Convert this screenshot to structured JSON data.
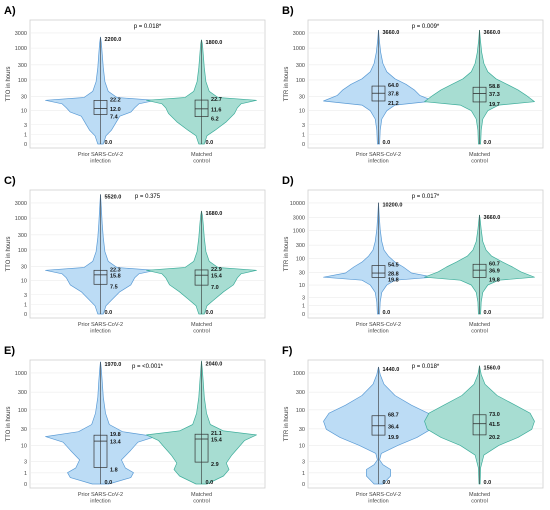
{
  "chart_data": [
    {
      "type": "violin",
      "panel": "A)",
      "ylabel": "TTO in hours",
      "yscale": "log1p",
      "yticks": [
        0,
        1,
        3,
        10,
        30,
        100,
        300,
        1000,
        3000
      ],
      "p_label": "p = 0.018*",
      "groups": [
        {
          "name": "Prior SARS-CoV-2\ninfection",
          "color": "#bcdcf5",
          "edge": "#5b9bd5",
          "min": 0.0,
          "max": 2200.0,
          "q1": 7.4,
          "median": 12.0,
          "q3": 22.2,
          "min_label": "0.0",
          "max_label": "2200.0",
          "q1_label": "7.4",
          "median_label": "12.0",
          "q3_label": "22.2",
          "profile": [
            [
              0,
              0.05
            ],
            [
              0.6,
              0.1
            ],
            [
              1,
              0.2
            ],
            [
              2,
              0.35
            ],
            [
              2.3,
              0.55
            ],
            [
              2.6,
              0.62
            ],
            [
              2.9,
              0.7
            ],
            [
              3.15,
              1.0
            ],
            [
              3.35,
              0.3
            ],
            [
              3.8,
              0.14
            ],
            [
              4.5,
              0.08
            ],
            [
              5.5,
              0.05
            ],
            [
              6.5,
              0.03
            ],
            [
              7.3,
              0.015
            ],
            [
              7.7,
              0.0
            ]
          ]
        },
        {
          "name": "Matched\ncontrol",
          "color": "#a7ddd2",
          "edge": "#3fae9c",
          "min": 0.0,
          "max": 1800.0,
          "q1": 6.2,
          "median": 11.6,
          "q3": 22.7,
          "min_label": "0.0",
          "max_label": "1800.0",
          "q1_label": "6.2",
          "median_label": "11.6",
          "q3_label": "22.7",
          "profile": [
            [
              0,
              0.05
            ],
            [
              0.6,
              0.1
            ],
            [
              1,
              0.25
            ],
            [
              1.6,
              0.45
            ],
            [
              2.2,
              0.6
            ],
            [
              2.6,
              0.65
            ],
            [
              2.9,
              0.72
            ],
            [
              3.15,
              1.0
            ],
            [
              3.35,
              0.3
            ],
            [
              3.8,
              0.14
            ],
            [
              4.5,
              0.08
            ],
            [
              5.5,
              0.05
            ],
            [
              6.5,
              0.03
            ],
            [
              7.2,
              0.015
            ],
            [
              7.5,
              0.0
            ]
          ]
        }
      ]
    },
    {
      "type": "violin",
      "panel": "B)",
      "ylabel": "TTR in hours",
      "yscale": "log1p",
      "yticks": [
        0,
        1,
        3,
        10,
        30,
        100,
        300,
        1000,
        3000
      ],
      "p_label": "p = 0.009*",
      "groups": [
        {
          "name": "Prior SARS-CoV-2\ninfection",
          "color": "#bcdcf5",
          "edge": "#5b9bd5",
          "min": 0.0,
          "max": 3660.0,
          "q1": 21.2,
          "median": 37.8,
          "q3": 64.0,
          "min_label": "0.0",
          "max_label": "3660.0",
          "q1_label": "21.2",
          "median_label": "37.8",
          "q3_label": "64.0",
          "profile": [
            [
              0,
              0.02
            ],
            [
              1,
              0.03
            ],
            [
              1.8,
              0.06
            ],
            [
              2.4,
              0.15
            ],
            [
              2.8,
              0.3
            ],
            [
              3.1,
              1.0
            ],
            [
              3.5,
              0.75
            ],
            [
              3.9,
              0.65
            ],
            [
              4.3,
              0.5
            ],
            [
              4.7,
              0.3
            ],
            [
              5.2,
              0.15
            ],
            [
              5.8,
              0.08
            ],
            [
              6.6,
              0.04
            ],
            [
              7.5,
              0.015
            ],
            [
              8.2,
              0.0
            ]
          ]
        },
        {
          "name": "Matched\ncontrol",
          "color": "#a7ddd2",
          "edge": "#3fae9c",
          "min": 0.0,
          "max": 3660.0,
          "q1": 19.7,
          "median": 37.3,
          "q3": 58.8,
          "min_label": "0.0",
          "max_label": "3660.0",
          "q1_label": "19.7",
          "median_label": "37.3",
          "q3_label": "58.8",
          "profile": [
            [
              0,
              0.02
            ],
            [
              1,
              0.03
            ],
            [
              1.8,
              0.06
            ],
            [
              2.4,
              0.15
            ],
            [
              2.8,
              0.35
            ],
            [
              3.05,
              1.0
            ],
            [
              3.5,
              0.85
            ],
            [
              3.9,
              0.7
            ],
            [
              4.3,
              0.5
            ],
            [
              4.7,
              0.3
            ],
            [
              5.2,
              0.15
            ],
            [
              5.8,
              0.08
            ],
            [
              6.6,
              0.04
            ],
            [
              7.5,
              0.015
            ],
            [
              8.2,
              0.0
            ]
          ]
        }
      ]
    },
    {
      "type": "violin",
      "panel": "C)",
      "ylabel": "TTO in hours",
      "yscale": "log1p",
      "yticks": [
        0,
        1,
        3,
        10,
        30,
        100,
        300,
        1000,
        3000
      ],
      "p_label": "p = 0.375",
      "groups": [
        {
          "name": "Prior SARS-CoV-2\ninfection",
          "color": "#bcdcf5",
          "edge": "#5b9bd5",
          "min": 0.0,
          "max": 5520.0,
          "q1": 7.5,
          "median": 15.8,
          "q3": 22.3,
          "min_label": "0.0",
          "max_label": "5520.0",
          "q1_label": "7.5",
          "median_label": "15.8",
          "q3_label": "22.3",
          "profile": [
            [
              0,
              0.05
            ],
            [
              0.6,
              0.1
            ],
            [
              1,
              0.2
            ],
            [
              1.6,
              0.35
            ],
            [
              2.1,
              0.55
            ],
            [
              2.6,
              0.62
            ],
            [
              2.9,
              0.7
            ],
            [
              3.15,
              1.0
            ],
            [
              3.35,
              0.3
            ],
            [
              3.8,
              0.14
            ],
            [
              4.5,
              0.08
            ],
            [
              5.5,
              0.05
            ],
            [
              6.5,
              0.03
            ],
            [
              7.8,
              0.012
            ],
            [
              8.6,
              0.0
            ]
          ]
        },
        {
          "name": "Matched\ncontrol",
          "color": "#a7ddd2",
          "edge": "#3fae9c",
          "min": 0.0,
          "max": 1680.0,
          "q1": 7.0,
          "median": 15.4,
          "q3": 22.9,
          "min_label": "0.0",
          "max_label": "1680.0",
          "q1_label": "7.0",
          "median_label": "15.4",
          "q3_label": "22.9",
          "profile": [
            [
              0,
              0.05
            ],
            [
              0.6,
              0.1
            ],
            [
              1,
              0.22
            ],
            [
              1.6,
              0.4
            ],
            [
              2.1,
              0.58
            ],
            [
              2.6,
              0.65
            ],
            [
              2.9,
              0.72
            ],
            [
              3.15,
              1.0
            ],
            [
              3.35,
              0.3
            ],
            [
              3.8,
              0.14
            ],
            [
              4.5,
              0.08
            ],
            [
              5.5,
              0.05
            ],
            [
              6.5,
              0.03
            ],
            [
              7.1,
              0.015
            ],
            [
              7.4,
              0.0
            ]
          ]
        }
      ]
    },
    {
      "type": "violin",
      "panel": "D)",
      "ylabel": "TTR in hours",
      "yscale": "log1p",
      "yticks": [
        0,
        1,
        3,
        10,
        30,
        100,
        300,
        1000,
        3000,
        10000
      ],
      "p_label": "p = 0.017*",
      "groups": [
        {
          "name": "Prior SARS-CoV-2\ninfection",
          "color": "#bcdcf5",
          "edge": "#5b9bd5",
          "min": 0.0,
          "max": 10200.0,
          "q1": 19.8,
          "median": 28.8,
          "q3": 54.5,
          "min_label": "0.0",
          "max_label": "10200.0",
          "q1_label": "19.8",
          "median_label": "28.8",
          "q3_label": "54.5",
          "profile": [
            [
              0,
              0.02
            ],
            [
              1,
              0.03
            ],
            [
              1.8,
              0.06
            ],
            [
              2.4,
              0.15
            ],
            [
              2.8,
              0.3
            ],
            [
              3.05,
              1.0
            ],
            [
              3.4,
              0.6
            ],
            [
              3.9,
              0.45
            ],
            [
              4.3,
              0.3
            ],
            [
              4.8,
              0.18
            ],
            [
              5.3,
              0.1
            ],
            [
              6,
              0.06
            ],
            [
              7,
              0.03
            ],
            [
              8.2,
              0.012
            ],
            [
              9.2,
              0.0
            ]
          ]
        },
        {
          "name": "Matched\ncontrol",
          "color": "#a7ddd2",
          "edge": "#3fae9c",
          "min": 0.0,
          "max": 3660.0,
          "q1": 19.8,
          "median": 36.9,
          "q3": 60.7,
          "min_label": "0.0",
          "max_label": "3660.0",
          "q1_label": "19.8",
          "median_label": "36.9",
          "q3_label": "60.7",
          "profile": [
            [
              0,
              0.02
            ],
            [
              1,
              0.03
            ],
            [
              1.8,
              0.06
            ],
            [
              2.4,
              0.15
            ],
            [
              2.8,
              0.35
            ],
            [
              3.05,
              1.0
            ],
            [
              3.5,
              0.75
            ],
            [
              3.9,
              0.6
            ],
            [
              4.3,
              0.42
            ],
            [
              4.8,
              0.22
            ],
            [
              5.3,
              0.12
            ],
            [
              6,
              0.06
            ],
            [
              7,
              0.03
            ],
            [
              7.8,
              0.012
            ],
            [
              8.2,
              0.0
            ]
          ]
        }
      ]
    },
    {
      "type": "violin",
      "panel": "E)",
      "ylabel": "TTO in hours",
      "yscale": "log1p",
      "yticks": [
        0,
        1,
        3,
        10,
        30,
        100,
        300,
        1000
      ],
      "p_label": "p = <0.001*",
      "groups": [
        {
          "name": "Prior SARS-CoV-2\ninfection",
          "color": "#bcdcf5",
          "edge": "#5b9bd5",
          "min": 0.0,
          "max": 1970.0,
          "q1": 1.8,
          "median": 13.4,
          "q3": 19.8,
          "min_label": "0.0",
          "max_label": "1970.0",
          "q1_label": "1.8",
          "median_label": "13.4",
          "q3_label": "19.8",
          "profile": [
            [
              0,
              0.15
            ],
            [
              0.4,
              0.55
            ],
            [
              0.7,
              0.6
            ],
            [
              1.0,
              0.45
            ],
            [
              1.5,
              0.38
            ],
            [
              2.1,
              0.55
            ],
            [
              2.6,
              0.68
            ],
            [
              2.95,
              1.0
            ],
            [
              3.25,
              0.4
            ],
            [
              3.7,
              0.16
            ],
            [
              4.4,
              0.09
            ],
            [
              5.4,
              0.05
            ],
            [
              6.4,
              0.03
            ],
            [
              7.2,
              0.012
            ],
            [
              7.6,
              0.0
            ]
          ]
        },
        {
          "name": "Matched\ncontrol",
          "color": "#a7ddd2",
          "edge": "#3fae9c",
          "min": 0.0,
          "max": 2040.0,
          "q1": 2.9,
          "median": 15.4,
          "q3": 21.1,
          "min_label": "0.0",
          "max_label": "2040.0",
          "q1_label": "2.9",
          "median_label": "15.4",
          "q3_label": "21.1",
          "profile": [
            [
              0,
              0.1
            ],
            [
              0.5,
              0.4
            ],
            [
              0.9,
              0.5
            ],
            [
              1.3,
              0.45
            ],
            [
              1.8,
              0.55
            ],
            [
              2.3,
              0.68
            ],
            [
              2.7,
              0.78
            ],
            [
              3.05,
              1.0
            ],
            [
              3.3,
              0.4
            ],
            [
              3.7,
              0.16
            ],
            [
              4.4,
              0.09
            ],
            [
              5.4,
              0.05
            ],
            [
              6.4,
              0.03
            ],
            [
              7.2,
              0.012
            ],
            [
              7.65,
              0.0
            ]
          ]
        }
      ]
    },
    {
      "type": "violin",
      "panel": "F)",
      "ylabel": "TTR in hours",
      "yscale": "log1p",
      "yticks": [
        0,
        1,
        3,
        10,
        30,
        100,
        300,
        1000
      ],
      "p_label": "p = 0.018*",
      "groups": [
        {
          "name": "Prior SARS-CoV-2\ninfection",
          "color": "#bcdcf5",
          "edge": "#5b9bd5",
          "min": 0.0,
          "max": 1440.0,
          "q1": 19.9,
          "median": 36.4,
          "q3": 68.7,
          "min_label": "0.0",
          "max_label": "1440.0",
          "q1_label": "19.9",
          "median_label": "36.4",
          "q3_label": "68.7",
          "profile": [
            [
              0,
              0.08
            ],
            [
              0.5,
              0.22
            ],
            [
              0.9,
              0.22
            ],
            [
              1.2,
              0.08
            ],
            [
              1.5,
              0.02
            ],
            [
              1.9,
              0.05
            ],
            [
              2.4,
              0.35
            ],
            [
              2.9,
              0.7
            ],
            [
              3.4,
              0.95
            ],
            [
              3.9,
              1.0
            ],
            [
              4.4,
              0.9
            ],
            [
              4.9,
              0.6
            ],
            [
              5.5,
              0.3
            ],
            [
              6.2,
              0.1
            ],
            [
              6.8,
              0.03
            ],
            [
              7.27,
              0.0
            ]
          ]
        },
        {
          "name": "Matched\ncontrol",
          "color": "#a7ddd2",
          "edge": "#3fae9c",
          "min": 0.0,
          "max": 1560.0,
          "q1": 20.2,
          "median": 41.5,
          "q3": 73.0,
          "min_label": "0.0",
          "max_label": "1560.0",
          "q1_label": "20.2",
          "median_label": "41.5",
          "q3_label": "73.0",
          "profile": [
            [
              0,
              0.01
            ],
            [
              1,
              0.02
            ],
            [
              1.8,
              0.08
            ],
            [
              2.4,
              0.35
            ],
            [
              2.9,
              0.7
            ],
            [
              3.4,
              0.95
            ],
            [
              3.9,
              1.0
            ],
            [
              4.4,
              0.92
            ],
            [
              4.9,
              0.65
            ],
            [
              5.5,
              0.32
            ],
            [
              6.2,
              0.1
            ],
            [
              6.8,
              0.03
            ],
            [
              7.35,
              0.0
            ]
          ]
        }
      ]
    }
  ]
}
